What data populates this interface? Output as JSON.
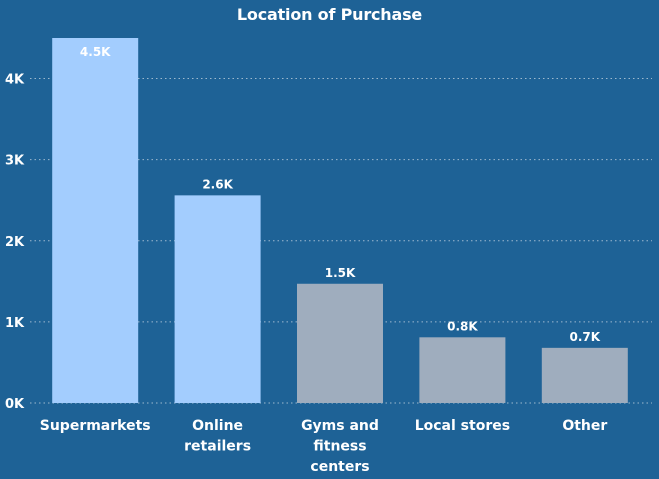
{
  "chart_data": {
    "type": "bar",
    "title": "Location of Purchase",
    "xlabel": "",
    "ylabel": "",
    "ylim": [
      0,
      4500
    ],
    "y_ticks": [
      {
        "value": 0,
        "label": "0K"
      },
      {
        "value": 1000,
        "label": "1K"
      },
      {
        "value": 2000,
        "label": "2K"
      },
      {
        "value": 3000,
        "label": "3K"
      },
      {
        "value": 4000,
        "label": "4K"
      }
    ],
    "grid": true,
    "categories": [
      [
        "Supermarkets"
      ],
      [
        "Online",
        "retailers"
      ],
      [
        "Gyms and",
        "fitness",
        "centers"
      ],
      [
        "Local stores"
      ],
      [
        "Other"
      ]
    ],
    "values": [
      4500,
      2560,
      1470,
      810,
      680
    ],
    "data_labels": [
      "4.5K",
      "2.6K",
      "1.5K",
      "0.8K",
      "0.7K"
    ],
    "colors": [
      "#a3cdfe",
      "#a3cdfe",
      "#9fadbe",
      "#9fadbe",
      "#9fadbe"
    ],
    "background": "#1e6296"
  }
}
